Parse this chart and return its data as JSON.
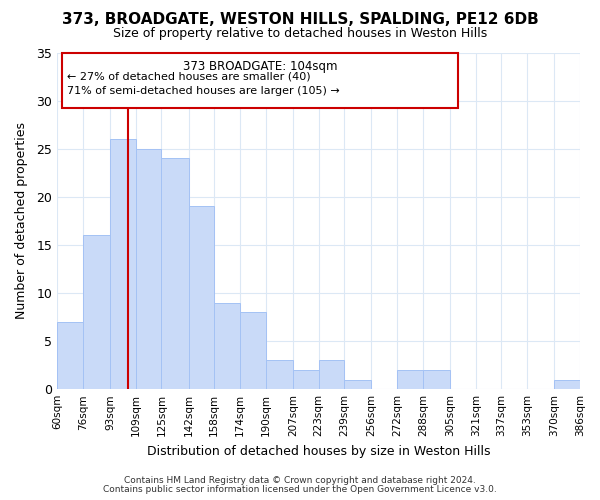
{
  "title": "373, BROADGATE, WESTON HILLS, SPALDING, PE12 6DB",
  "subtitle": "Size of property relative to detached houses in Weston Hills",
  "xlabel": "Distribution of detached houses by size in Weston Hills",
  "ylabel": "Number of detached properties",
  "bar_edges": [
    60,
    76,
    93,
    109,
    125,
    142,
    158,
    174,
    190,
    207,
    223,
    239,
    256,
    272,
    288,
    305,
    321,
    337,
    353,
    370,
    386
  ],
  "bar_heights": [
    7,
    16,
    26,
    25,
    24,
    19,
    9,
    8,
    3,
    2,
    3,
    1,
    0,
    2,
    2,
    0,
    0,
    0,
    0,
    1
  ],
  "bar_color": "#c9daf8",
  "bar_edge_color": "#a4c2f4",
  "vline_x": 104,
  "vline_color": "#cc0000",
  "ylim": [
    0,
    35
  ],
  "yticks": [
    0,
    5,
    10,
    15,
    20,
    25,
    30,
    35
  ],
  "tick_labels": [
    "60sqm",
    "76sqm",
    "93sqm",
    "109sqm",
    "125sqm",
    "142sqm",
    "158sqm",
    "174sqm",
    "190sqm",
    "207sqm",
    "223sqm",
    "239sqm",
    "256sqm",
    "272sqm",
    "288sqm",
    "305sqm",
    "321sqm",
    "337sqm",
    "353sqm",
    "370sqm",
    "386sqm"
  ],
  "annotation_title": "373 BROADGATE: 104sqm",
  "annotation_line1": "← 27% of detached houses are smaller (40)",
  "annotation_line2": "71% of semi-detached houses are larger (105) →",
  "footer1": "Contains HM Land Registry data © Crown copyright and database right 2024.",
  "footer2": "Contains public sector information licensed under the Open Government Licence v3.0.",
  "bg_color": "#ffffff",
  "grid_color": "#dce8f5"
}
